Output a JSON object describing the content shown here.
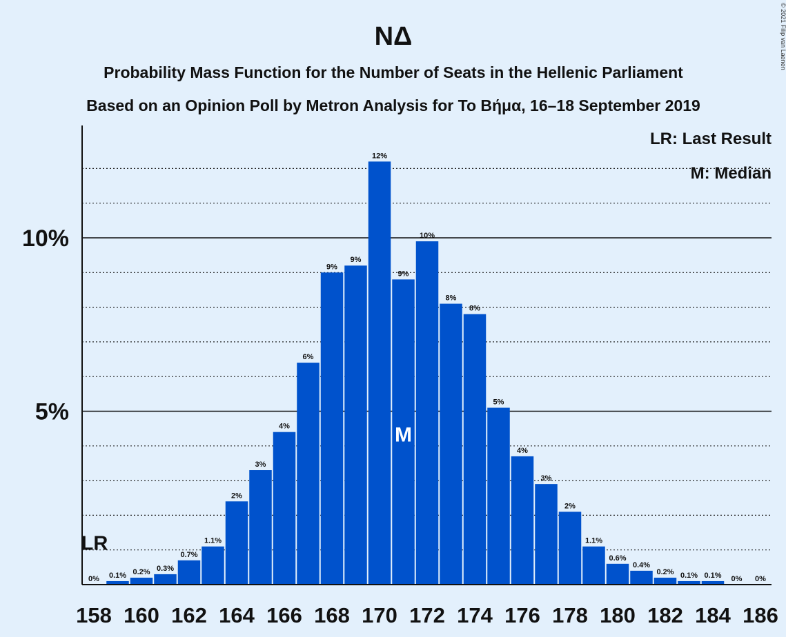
{
  "copyright": "© 2021 Filip van Laenen",
  "legend": {
    "last_result": "LR: Last Result",
    "median": "M: Median"
  },
  "markers": {
    "last_result_label": "LR",
    "median_label": "M"
  },
  "colors": {
    "background": "#e3f0fc",
    "bar": "#0052cc",
    "text": "#111111"
  },
  "chart_data": {
    "type": "bar",
    "title": "ΝΔ",
    "subtitle1": "Probability Mass Function for the Number of Seats in the Hellenic Parliament",
    "subtitle2": "Based on an Opinion Poll by Metron Analysis for To Βήμα, 16–18 September 2019",
    "categories": [
      158,
      159,
      160,
      161,
      162,
      163,
      164,
      165,
      166,
      167,
      168,
      169,
      170,
      171,
      172,
      173,
      174,
      175,
      176,
      177,
      178,
      179,
      180,
      181,
      182,
      183,
      184,
      185,
      186
    ],
    "values": [
      0,
      0.1,
      0.2,
      0.3,
      0.7,
      1.1,
      2.4,
      3.3,
      4.4,
      6.4,
      9.0,
      9.2,
      12.2,
      8.8,
      9.9,
      8.1,
      7.8,
      5.1,
      3.7,
      2.9,
      2.1,
      1.1,
      0.6,
      0.4,
      0.2,
      0.1,
      0.1,
      0,
      0
    ],
    "data_labels": [
      "0%",
      "0.1%",
      "0.2%",
      "0.3%",
      "0.7%",
      "1.1%",
      "2%",
      "3%",
      "4%",
      "6%",
      "9%",
      "9%",
      "12%",
      "9%",
      "10%",
      "8%",
      "8%",
      "5%",
      "4%",
      "3%",
      "2%",
      "1.1%",
      "0.6%",
      "0.4%",
      "0.2%",
      "0.1%",
      "0.1%",
      "0%",
      "0%"
    ],
    "x_tick_labels": [
      "158",
      "160",
      "162",
      "164",
      "166",
      "168",
      "170",
      "172",
      "174",
      "176",
      "178",
      "180",
      "182",
      "184",
      "186"
    ],
    "y_tick_labels": [
      "5%",
      "10%"
    ],
    "y_ticks": [
      5,
      10
    ],
    "ylim": [
      0,
      13.2
    ],
    "minor_grid": [
      1,
      2,
      3,
      4,
      6,
      7,
      8,
      9,
      11,
      12
    ],
    "last_result_seat": 158,
    "median_seat": 171
  }
}
